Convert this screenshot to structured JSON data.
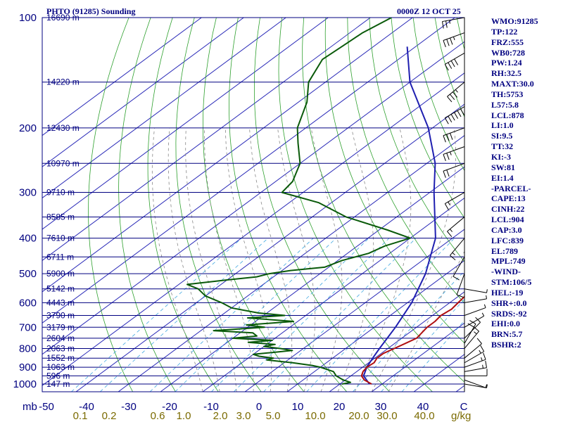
{
  "header": {
    "station": "PHTO (91285) Sounding",
    "time": "0000Z 12 OCT 25"
  },
  "axis": {
    "pressure_unit": "mb",
    "mixing_ratio_unit": "g/kg"
  },
  "chart_data": {
    "type": "skew-t",
    "title": "PHTO (91285) Sounding",
    "valid_time": "0000Z 12 OCT 25",
    "pressure_levels": [
      100,
      200,
      300,
      400,
      500,
      600,
      700,
      800,
      900,
      1000
    ],
    "pressure_labels": [
      "100",
      "200",
      "300",
      "400",
      "500",
      "600",
      "700",
      "800",
      "900",
      "1000"
    ],
    "height_labels": [
      {
        "p": 100,
        "text": "16690 m"
      },
      {
        "p": 150,
        "text": "14220 m"
      },
      {
        "p": 200,
        "text": "12430 m"
      },
      {
        "p": 250,
        "text": "10970 m"
      },
      {
        "p": 300,
        "text": "9710 m"
      },
      {
        "p": 350,
        "text": "8585 m"
      },
      {
        "p": 400,
        "text": "7610 m"
      },
      {
        "p": 450,
        "text": "6711 m"
      },
      {
        "p": 500,
        "text": "5900 m"
      },
      {
        "p": 550,
        "text": "5142 m"
      },
      {
        "p": 600,
        "text": "4443 m"
      },
      {
        "p": 650,
        "text": "3790 m"
      },
      {
        "p": 700,
        "text": "3179 m"
      },
      {
        "p": 750,
        "text": "2604 m"
      },
      {
        "p": 800,
        "text": "2063 m"
      },
      {
        "p": 850,
        "text": "1552 m"
      },
      {
        "p": 900,
        "text": "1063 m"
      },
      {
        "p": 950,
        "text": "596 m"
      },
      {
        "p": 1000,
        "text": "147 m"
      }
    ],
    "temperature_ticks": [
      "-50",
      "-40",
      "-30",
      "-20",
      "-10",
      "0",
      "10",
      "20",
      "30",
      "40",
      "C"
    ],
    "mixing_ratio_labels": [
      "0.1",
      "0.2",
      "0.6",
      "1.0",
      "2.0",
      "3.0",
      "5.0",
      "10.0",
      "20.0",
      "30.0",
      "40.0"
    ],
    "temperature_profile": [
      [
        1000,
        27.5
      ],
      [
        975,
        24.5
      ],
      [
        950,
        22.5
      ],
      [
        925,
        21.5
      ],
      [
        900,
        21.0
      ],
      [
        875,
        21.3
      ],
      [
        850,
        20.5
      ],
      [
        825,
        20.5
      ],
      [
        800,
        21.5
      ],
      [
        775,
        22.5
      ],
      [
        750,
        23.5
      ],
      [
        700,
        22.5
      ],
      [
        675,
        22.5
      ],
      [
        650,
        22.0
      ],
      [
        625,
        22.5
      ],
      [
        600,
        22.0
      ],
      [
        575,
        21.5
      ],
      [
        550,
        20.0
      ],
      [
        525,
        19.5
      ],
      [
        500,
        18.5
      ],
      [
        475,
        17.0
      ],
      [
        450,
        15.0
      ],
      [
        425,
        12.5
      ],
      [
        400,
        9.5
      ],
      [
        350,
        3.0
      ],
      [
        300,
        -6.5
      ],
      [
        250,
        -16.0
      ],
      [
        230,
        -21.0
      ],
      [
        210,
        -25.0
      ],
      [
        200,
        -27.0
      ],
      [
        180,
        -30.0
      ],
      [
        160,
        -37.0
      ],
      [
        150,
        -40.0
      ],
      [
        140,
        -45.0
      ],
      [
        130,
        -50.0
      ],
      [
        120,
        -53.0
      ],
      [
        110,
        -56.0
      ],
      [
        100,
        -57.0
      ]
    ],
    "dewpoint_profile": [
      [
        1000,
        20.5
      ],
      [
        990,
        22.0
      ],
      [
        975,
        19.5
      ],
      [
        950,
        16.5
      ],
      [
        925,
        14.5
      ],
      [
        900,
        10.0
      ],
      [
        890,
        7.5
      ],
      [
        875,
        2.0
      ],
      [
        860,
        -5.0
      ],
      [
        850,
        -4.0
      ],
      [
        840,
        -8.0
      ],
      [
        830,
        -10.0
      ],
      [
        820,
        -6.0
      ],
      [
        810,
        -2.0
      ],
      [
        800,
        -5.5
      ],
      [
        790,
        -10.0
      ],
      [
        780,
        -8.0
      ],
      [
        770,
        -15.0
      ],
      [
        760,
        -10.0
      ],
      [
        750,
        -20.0
      ],
      [
        740,
        -15.0
      ],
      [
        725,
        -17.0
      ],
      [
        715,
        -27.0
      ],
      [
        700,
        -16.0
      ],
      [
        690,
        -21.0
      ],
      [
        675,
        -11.0
      ],
      [
        660,
        -23.0
      ],
      [
        650,
        -15.0
      ],
      [
        640,
        -22.0
      ],
      [
        620,
        -30.0
      ],
      [
        600,
        -34.0
      ],
      [
        575,
        -40.0
      ],
      [
        550,
        -44.0
      ],
      [
        535,
        -48.0
      ],
      [
        520,
        -40.0
      ],
      [
        510,
        -34.0
      ],
      [
        500,
        -32.0
      ],
      [
        490,
        -28.0
      ],
      [
        480,
        -21.0
      ],
      [
        460,
        -19.0
      ],
      [
        440,
        -15.0
      ],
      [
        420,
        -13.5
      ],
      [
        400,
        -10.0
      ],
      [
        380,
        -18.0
      ],
      [
        350,
        -32.0
      ],
      [
        320,
        -43.0
      ],
      [
        300,
        -55.0
      ],
      [
        280,
        -56.0
      ],
      [
        250,
        -60.0
      ],
      [
        220,
        -67.0
      ],
      [
        200,
        -72.0
      ],
      [
        170,
        -78.0
      ],
      [
        150,
        -84.0
      ],
      [
        130,
        -88.0
      ],
      [
        120,
        -87.5
      ],
      [
        110,
        -87.0
      ],
      [
        100,
        -85.0
      ]
    ],
    "parcel_profile": [
      [
        1000,
        27.0
      ],
      [
        950,
        23.0
      ],
      [
        900,
        21.0
      ],
      [
        850,
        19.5
      ],
      [
        800,
        18.0
      ],
      [
        700,
        15.0
      ],
      [
        600,
        11.0
      ],
      [
        500,
        5.0
      ],
      [
        400,
        -4.0
      ],
      [
        300,
        -19.0
      ],
      [
        250,
        -28.0
      ],
      [
        200,
        -41.0
      ],
      [
        150,
        -60.0
      ],
      [
        120,
        -72.0
      ]
    ],
    "wind_barbs": [
      {
        "p": 1000,
        "dir": 100,
        "kt": 5
      },
      {
        "p": 975,
        "dir": 110,
        "kt": 8
      },
      {
        "p": 950,
        "dir": 90,
        "kt": 12
      },
      {
        "p": 925,
        "dir": 80,
        "kt": 15
      },
      {
        "p": 900,
        "dir": 70,
        "kt": 18
      },
      {
        "p": 875,
        "dir": 60,
        "kt": 15
      },
      {
        "p": 850,
        "dir": 50,
        "kt": 12
      },
      {
        "p": 800,
        "dir": 40,
        "kt": 15
      },
      {
        "p": 775,
        "dir": 30,
        "kt": 20
      },
      {
        "p": 750,
        "dir": 45,
        "kt": 10
      },
      {
        "p": 700,
        "dir": 60,
        "kt": 5
      },
      {
        "p": 650,
        "dir": 70,
        "kt": 5
      },
      {
        "p": 600,
        "dir": 80,
        "kt": 5
      },
      {
        "p": 550,
        "dir": 100,
        "kt": 8
      },
      {
        "p": 500,
        "dir": 200,
        "kt": 10
      },
      {
        "p": 450,
        "dir": 210,
        "kt": 10
      },
      {
        "p": 400,
        "dir": 220,
        "kt": 15
      },
      {
        "p": 350,
        "dir": 230,
        "kt": 15
      },
      {
        "p": 300,
        "dir": 240,
        "kt": 15
      },
      {
        "p": 250,
        "dir": 250,
        "kt": 20
      },
      {
        "p": 225,
        "dir": 250,
        "kt": 25
      },
      {
        "p": 200,
        "dir": 250,
        "kt": 30
      },
      {
        "p": 175,
        "dir": 240,
        "kt": 60
      },
      {
        "p": 150,
        "dir": 230,
        "kt": 35
      },
      {
        "p": 125,
        "dir": 240,
        "kt": 40
      },
      {
        "p": 110,
        "dir": 250,
        "kt": 35
      },
      {
        "p": 100,
        "dir": 260,
        "kt": 25
      }
    ],
    "indices": [
      "WMO:91285",
      "TP:122",
      "FRZ:555",
      "WB0:728",
      "PW:1.24",
      "RH:32.5",
      "MAXT:30.0",
      "TH:5753",
      "L57:5.8",
      "LCL:878",
      "LI:1.0",
      "SI:9.5",
      "TT:32",
      "KI:-3",
      "SW:81",
      "EI:1.4",
      "-PARCEL-",
      "CAPE:13",
      "CINH:22",
      "LCL:904",
      "CAP:3.0",
      "LFC:839",
      "EL:789",
      "MPL:749",
      "-WIND-",
      "STM:106/5",
      "HEL:-19",
      "SHR+:0.0",
      "SRDS:-92",
      "EHI:0.0",
      "BRN:5.7",
      "BSHR:2"
    ]
  }
}
